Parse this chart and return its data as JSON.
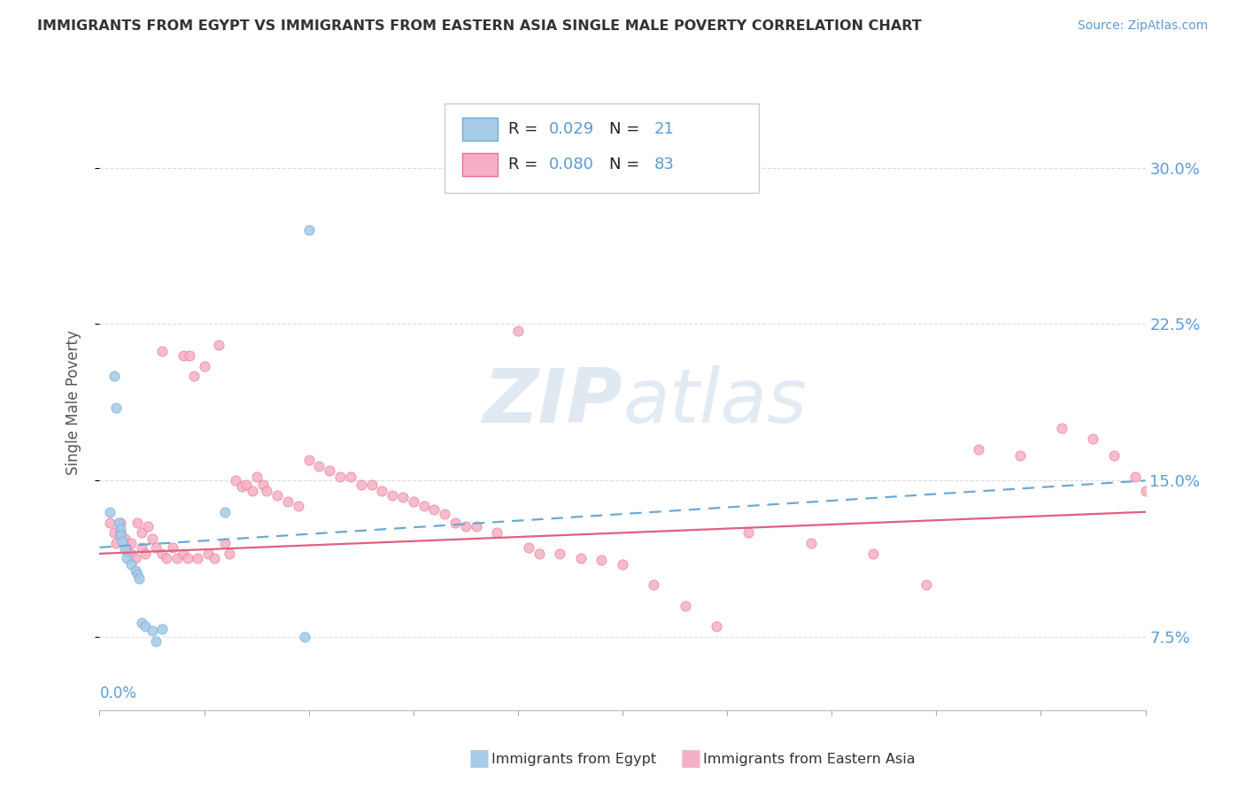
{
  "title": "IMMIGRANTS FROM EGYPT VS IMMIGRANTS FROM EASTERN ASIA SINGLE MALE POVERTY CORRELATION CHART",
  "source": "Source: ZipAtlas.com",
  "ylabel": "Single Male Poverty",
  "xlim": [
    0.0,
    0.5
  ],
  "ylim": [
    0.04,
    0.335
  ],
  "yticks": [
    0.075,
    0.15,
    0.225,
    0.3
  ],
  "ytick_labels": [
    "7.5%",
    "15.0%",
    "22.5%",
    "30.0%"
  ],
  "xticks": [
    0.0,
    0.05,
    0.1,
    0.15,
    0.2,
    0.25,
    0.3,
    0.35,
    0.4,
    0.45,
    0.5
  ],
  "series1_name": "Immigrants from Egypt",
  "series1_R": 0.029,
  "series1_N": 21,
  "series1_color": "#a8cce8",
  "series1_edge_color": "#6aaad4",
  "series1_line_color": "#6aaad4",
  "series2_name": "Immigrants from Eastern Asia",
  "series2_R": 0.08,
  "series2_N": 83,
  "series2_color": "#f5b0c5",
  "series2_edge_color": "#e8708a",
  "series2_line_color": "#e06080",
  "axis_color": "#5b9bd5",
  "title_color": "#333333",
  "series1_x": [
    0.005,
    0.007,
    0.008,
    0.009,
    0.01,
    0.01,
    0.011,
    0.012,
    0.013,
    0.015,
    0.017,
    0.018,
    0.019,
    0.02,
    0.022,
    0.025,
    0.027,
    0.03,
    0.06,
    0.098,
    0.1
  ],
  "series1_y": [
    0.135,
    0.2,
    0.185,
    0.13,
    0.127,
    0.124,
    0.121,
    0.117,
    0.113,
    0.11,
    0.107,
    0.105,
    0.103,
    0.082,
    0.08,
    0.078,
    0.073,
    0.079,
    0.135,
    0.075,
    0.27
  ],
  "series2_x": [
    0.005,
    0.007,
    0.008,
    0.01,
    0.01,
    0.012,
    0.013,
    0.015,
    0.015,
    0.017,
    0.018,
    0.02,
    0.02,
    0.022,
    0.023,
    0.025,
    0.027,
    0.03,
    0.03,
    0.032,
    0.035,
    0.037,
    0.04,
    0.04,
    0.042,
    0.043,
    0.045,
    0.047,
    0.05,
    0.052,
    0.055,
    0.057,
    0.06,
    0.062,
    0.065,
    0.068,
    0.07,
    0.073,
    0.075,
    0.078,
    0.08,
    0.085,
    0.09,
    0.095,
    0.1,
    0.105,
    0.11,
    0.115,
    0.12,
    0.125,
    0.13,
    0.135,
    0.14,
    0.145,
    0.15,
    0.155,
    0.16,
    0.165,
    0.17,
    0.175,
    0.18,
    0.19,
    0.2,
    0.205,
    0.21,
    0.22,
    0.23,
    0.24,
    0.25,
    0.265,
    0.28,
    0.295,
    0.31,
    0.34,
    0.37,
    0.395,
    0.42,
    0.44,
    0.46,
    0.475,
    0.485,
    0.495,
    0.5
  ],
  "series2_y": [
    0.13,
    0.125,
    0.12,
    0.13,
    0.125,
    0.122,
    0.118,
    0.12,
    0.115,
    0.113,
    0.13,
    0.125,
    0.118,
    0.115,
    0.128,
    0.122,
    0.118,
    0.212,
    0.115,
    0.113,
    0.118,
    0.113,
    0.21,
    0.115,
    0.113,
    0.21,
    0.2,
    0.113,
    0.205,
    0.115,
    0.113,
    0.215,
    0.12,
    0.115,
    0.15,
    0.147,
    0.148,
    0.145,
    0.152,
    0.148,
    0.145,
    0.143,
    0.14,
    0.138,
    0.16,
    0.157,
    0.155,
    0.152,
    0.152,
    0.148,
    0.148,
    0.145,
    0.143,
    0.142,
    0.14,
    0.138,
    0.136,
    0.134,
    0.13,
    0.128,
    0.128,
    0.125,
    0.222,
    0.118,
    0.115,
    0.115,
    0.113,
    0.112,
    0.11,
    0.1,
    0.09,
    0.08,
    0.125,
    0.12,
    0.115,
    0.1,
    0.165,
    0.162,
    0.175,
    0.17,
    0.162,
    0.152,
    0.145
  ]
}
